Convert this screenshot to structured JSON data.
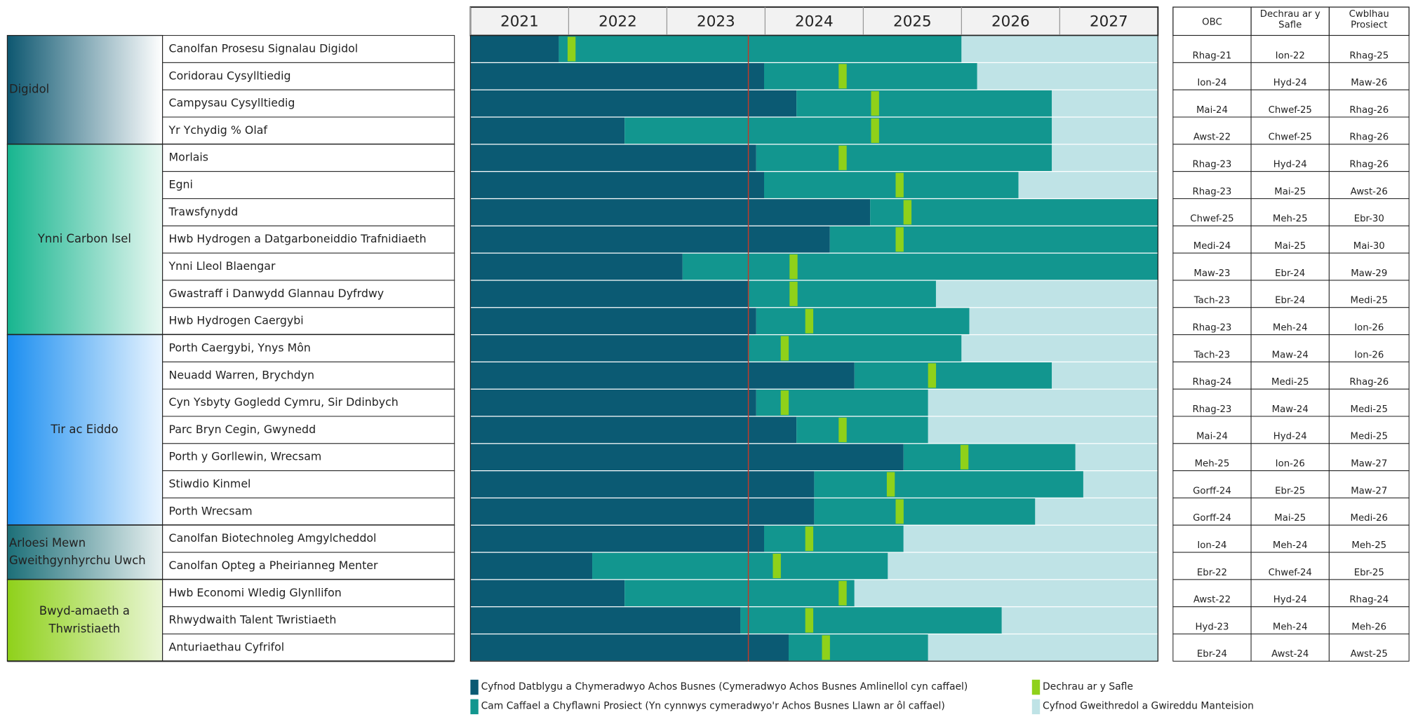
{
  "chart_data": {
    "type": "gantt",
    "xlim": [
      2021,
      2028
    ],
    "xticks": [
      2021,
      2022,
      2023,
      2024,
      2025,
      2026,
      2027
    ],
    "marker_line": 2023.83,
    "colors": {
      "dev": "#0b5a73",
      "delivery": "#12968f",
      "site": "#8fd11a",
      "operational": "#bfe3e6",
      "marker_line": "#c0392b"
    },
    "table_headers": [
      [
        "OBC"
      ],
      [
        "Dechrau ar y",
        "Safle"
      ],
      [
        "Cwblhau",
        "Prosiect"
      ]
    ],
    "groups": [
      {
        "label_lines": [
          "Digidol"
        ],
        "gradient": [
          "#0d5770",
          "#ffffff"
        ],
        "align": "start",
        "rows": [
          {
            "name": "Canolfan Prosesu Signalau Digidol",
            "dev_end": 2021.9,
            "site_start": 2022.03,
            "teal_end": 2026.0,
            "obc": "Rhag-21",
            "start": "Ion-22",
            "complete": "Rhag-25"
          },
          {
            "name": "Coridorau Cysylltiedig",
            "dev_end": 2023.99,
            "site_start": 2024.79,
            "teal_end": 2026.16,
            "obc": "Ion-24",
            "start": "Hyd-24",
            "complete": "Maw-26"
          },
          {
            "name": "Campysau Cysylltiedig",
            "dev_end": 2024.32,
            "site_start": 2025.12,
            "teal_end": 2026.92,
            "obc": "Mai-24",
            "start": "Chwef-25",
            "complete": "Rhag-26"
          },
          {
            "name": "Yr Ychydig % Olaf",
            "dev_end": 2022.57,
            "site_start": 2025.12,
            "teal_end": 2026.92,
            "obc": "Awst-22",
            "start": "Chwef-25",
            "complete": "Rhag-26"
          }
        ]
      },
      {
        "label_lines": [
          "Ynni Carbon Isel"
        ],
        "gradient": [
          "#17b58f",
          "#e9f8f2"
        ],
        "align": "middle",
        "rows": [
          {
            "name": "Morlais",
            "dev_end": 2023.91,
            "site_start": 2024.79,
            "teal_end": 2026.92,
            "obc": "Rhag-23",
            "start": "Hyd-24",
            "complete": "Rhag-26"
          },
          {
            "name": "Egni",
            "dev_end": 2023.99,
            "site_start": 2025.37,
            "teal_end": 2026.58,
            "obc": "Rhag-23",
            "start": "Mai-25",
            "complete": "Awst-26"
          },
          {
            "name": "Trawsfynydd",
            "dev_end": 2025.07,
            "site_start": 2025.45,
            "teal_end": null,
            "obc": "Chwef-25",
            "start": "Meh-25",
            "complete": "Ebr-30"
          },
          {
            "name": "Hwb Hydrogen a Datgarboneiddio Trafnidiaeth",
            "dev_end": 2024.66,
            "site_start": 2025.37,
            "teal_end": null,
            "obc": "Medi-24",
            "start": "Mai-25",
            "complete": "Mai-30"
          },
          {
            "name": "Ynni Lleol Blaengar",
            "dev_end": 2023.16,
            "site_start": 2024.29,
            "teal_end": null,
            "obc": "Maw-23",
            "start": "Ebr-24",
            "complete": "Maw-29"
          },
          {
            "name": "Gwastraff i Danwydd Glannau Dyfrdwy",
            "dev_end": 2023.83,
            "site_start": 2024.29,
            "teal_end": 2025.74,
            "obc": "Tach-23",
            "start": "Ebr-24",
            "complete": "Medi-25"
          },
          {
            "name": "Hwb Hydrogen Caergybi",
            "dev_end": 2023.91,
            "site_start": 2024.45,
            "teal_end": 2026.08,
            "obc": "Rhag-23",
            "start": "Meh-24",
            "complete": "Ion-26"
          }
        ]
      },
      {
        "label_lines": [
          "Tir ac Eiddo"
        ],
        "gradient": [
          "#1b8ef0",
          "#eaf5ff"
        ],
        "align": "middle",
        "rows": [
          {
            "name": "Porth Caergybi, Ynys Môn",
            "dev_end": 2023.83,
            "site_start": 2024.2,
            "teal_end": 2026.0,
            "obc": "Tach-23",
            "start": "Maw-24",
            "complete": "Ion-26"
          },
          {
            "name": "Neuadd Warren, Brychdyn",
            "dev_end": 2024.91,
            "site_start": 2025.7,
            "teal_end": 2026.92,
            "obc": "Rhag-24",
            "start": "Medi-25",
            "complete": "Rhag-26"
          },
          {
            "name": "Cyn Ysbyty Gogledd Cymru, Sir Ddinbych",
            "dev_end": 2023.91,
            "site_start": 2024.2,
            "teal_end": 2025.66,
            "obc": "Rhag-23",
            "start": "Maw-24",
            "complete": "Medi-25"
          },
          {
            "name": "Parc Bryn Cegin, Gwynedd",
            "dev_end": 2024.32,
            "site_start": 2024.79,
            "teal_end": 2025.66,
            "obc": "Mai-24",
            "start": "Hyd-24",
            "complete": "Medi-25"
          },
          {
            "name": "Porth y Gorllewin, Wrecsam",
            "dev_end": 2025.41,
            "site_start": 2026.03,
            "teal_end": 2027.16,
            "obc": "Meh-25",
            "start": "Ion-26",
            "complete": "Maw-27"
          },
          {
            "name": "Stiwdio Kinmel",
            "dev_end": 2024.5,
            "site_start": 2025.28,
            "teal_end": 2027.24,
            "obc": "Gorff-24",
            "start": "Ebr-25",
            "complete": "Maw-27"
          },
          {
            "name": "Porth Wrecsam",
            "dev_end": 2024.5,
            "site_start": 2025.37,
            "teal_end": 2026.75,
            "obc": "Gorff-24",
            "start": "Mai-25",
            "complete": "Medi-26"
          }
        ]
      },
      {
        "label_lines": [
          "Arloesi Mewn",
          "Gweithgynhyrchu Uwch"
        ],
        "gradient": [
          "#1c6f78",
          "#e9f1f1"
        ],
        "align": "start",
        "rows": [
          {
            "name": "Canolfan Biotechnoleg Amgylcheddol",
            "dev_end": 2023.99,
            "site_start": 2024.45,
            "teal_end": 2025.41,
            "obc": "Ion-24",
            "start": "Meh-24",
            "complete": "Meh-25"
          },
          {
            "name": "Canolfan Opteg a Pheirianneg Menter",
            "dev_end": 2022.24,
            "site_start": 2024.12,
            "teal_end": 2025.25,
            "obc": "Ebr-22",
            "start": "Chwef-24",
            "complete": "Ebr-25"
          }
        ]
      },
      {
        "label_lines": [
          "Bwyd-amaeth a",
          "Thwristiaeth"
        ],
        "gradient": [
          "#8fd11a",
          "#eaf6d6"
        ],
        "align": "middle",
        "rows": [
          {
            "name": "Hwb Economi Wledig Glynllifon",
            "dev_end": 2022.57,
            "site_start": 2024.79,
            "teal_end": 2024.91,
            "obc": "Awst-22",
            "start": "Hyd-24",
            "complete": "Rhag-24"
          },
          {
            "name": "Rhwydwaith Talent Twristiaeth",
            "dev_end": 2023.75,
            "site_start": 2024.45,
            "teal_end": 2026.41,
            "obc": "Hyd-23",
            "start": "Meh-24",
            "complete": "Meh-26"
          },
          {
            "name": "Anturiaethau Cyfrifol",
            "dev_end": 2024.24,
            "site_start": 2024.62,
            "teal_end": 2025.66,
            "obc": "Ebr-24",
            "start": "Awst-24",
            "complete": "Awst-25"
          }
        ]
      }
    ],
    "legend": [
      {
        "label": "Cyfnod Datblygu a Chymeradwyo Achos Busnes (Cymeradwyo Achos Busnes Amlinellol cyn caffael)",
        "key": "dev"
      },
      {
        "label": "Cam Caffael a Chyflawni Prosiect (Yn cynnwys cymeradwyo'r Achos Busnes Llawn ar ôl caffael)",
        "key": "delivery"
      },
      {
        "label": "Dechrau ar y Safle",
        "key": "site"
      },
      {
        "label": "Cyfnod Gweithredol a Gwireddu Manteision",
        "key": "operational"
      }
    ]
  }
}
